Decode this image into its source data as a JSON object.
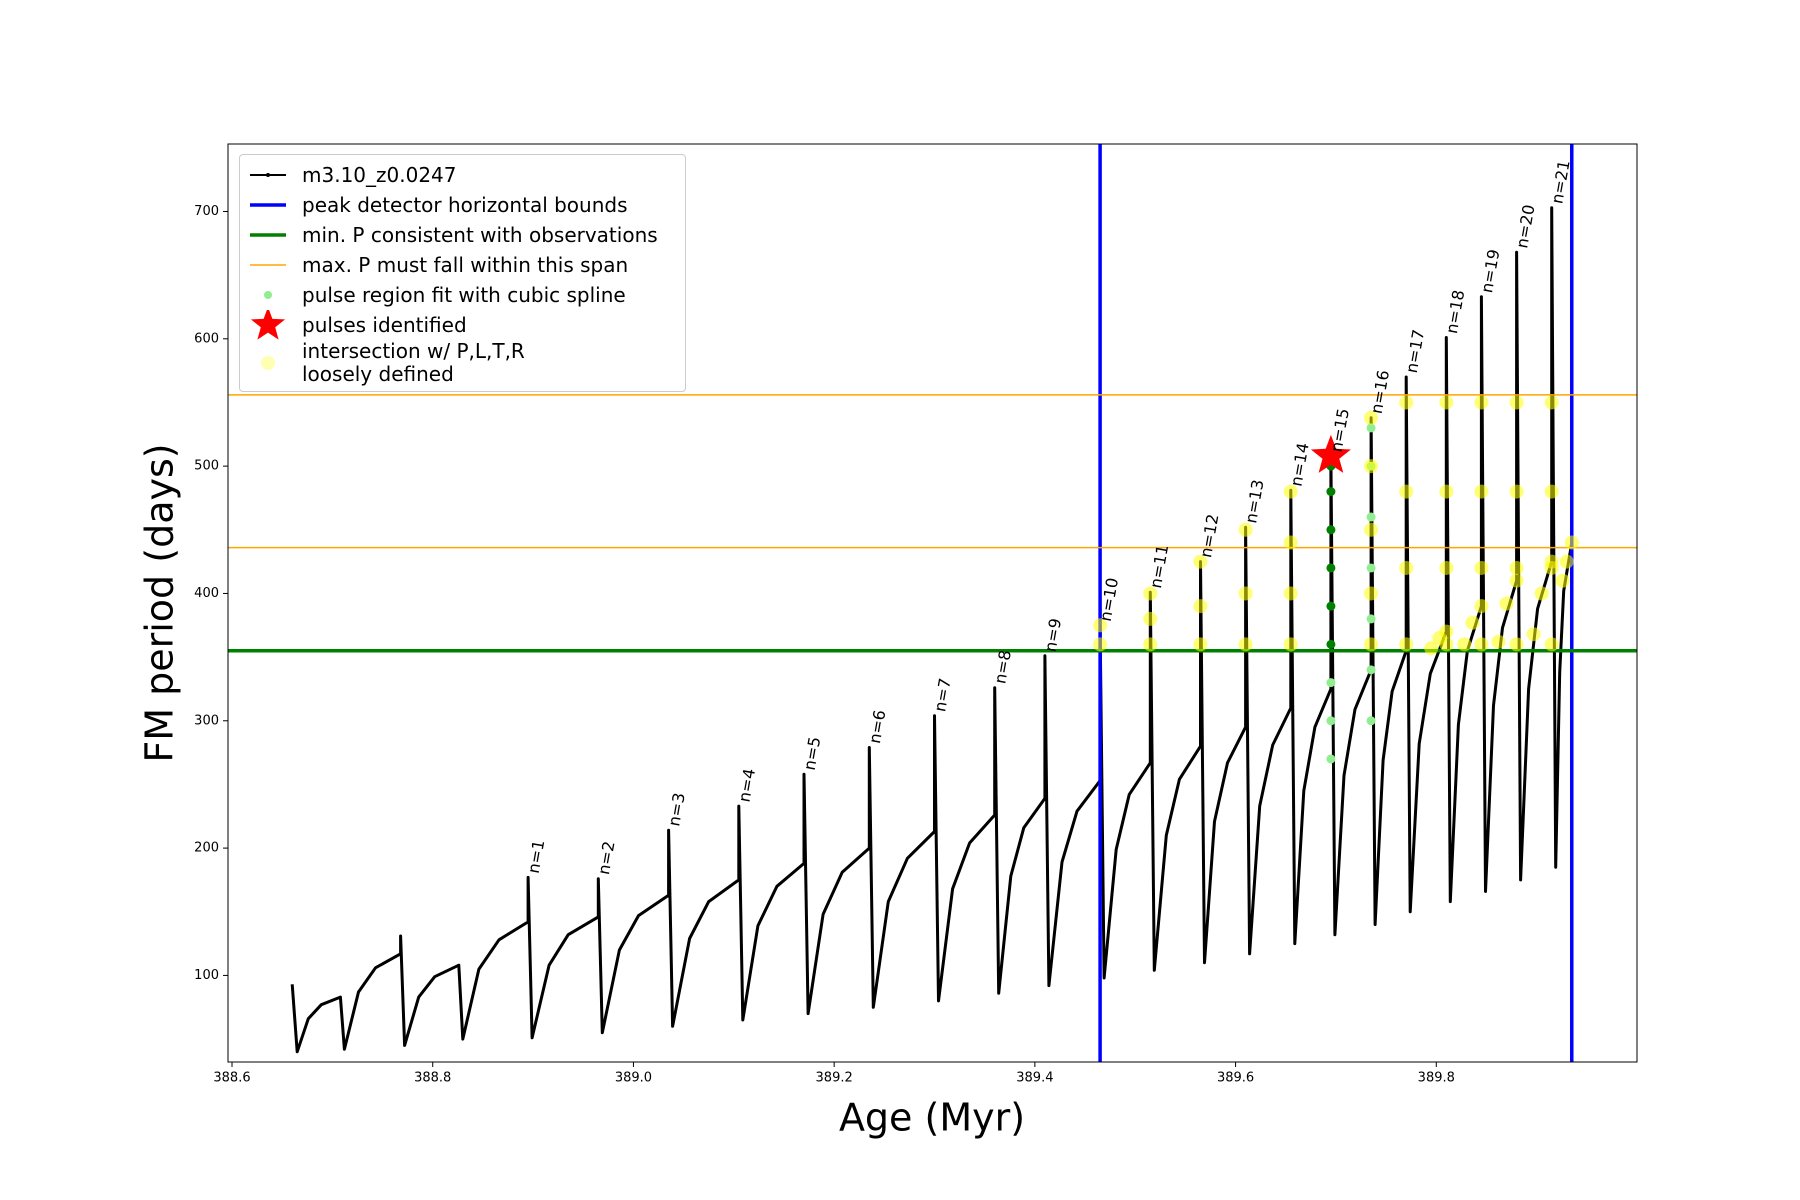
{
  "chart_data": {
    "type": "line",
    "xlabel": "Age (Myr)",
    "ylabel": "FM period (days)",
    "xlim": [
      388.596,
      390.0
    ],
    "xticks": [
      388.6,
      388.8,
      {
        "value": 389,
        "label": "389.0"
      },
      389.2,
      389.4,
      389.6,
      389.8
    ],
    "ylim": [
      32,
      753
    ],
    "yticks": [
      100,
      200,
      300,
      400,
      500,
      600,
      700
    ],
    "legend": "upper left",
    "series": [
      {
        "name": "m3.10_z0.0247",
        "type": "line",
        "color": "#000000",
        "width": 3,
        "x": [
          388.66,
          388.665,
          388.676,
          388.689,
          388.708,
          388.712,
          388.726,
          388.743,
          388.768,
          388.768,
          388.772,
          388.786,
          388.802,
          388.826,
          388.83,
          388.846,
          388.866,
          388.895,
          388.895,
          388.899,
          388.916,
          388.935,
          388.965,
          388.965,
          388.969,
          388.986,
          389.005,
          389.035,
          389.035,
          389.039,
          389.056,
          389.075,
          389.105,
          389.105,
          389.109,
          389.124,
          389.143,
          389.17,
          389.17,
          389.174,
          389.189,
          389.208,
          389.235,
          389.235,
          389.239,
          389.254,
          389.273,
          389.3,
          389.3,
          389.304,
          389.318,
          389.335,
          389.36,
          389.36,
          389.364,
          389.376,
          389.389,
          389.41,
          389.41,
          389.414,
          389.427,
          389.442,
          389.465,
          389.465,
          389.469,
          389.481,
          389.494,
          389.515,
          389.515,
          389.519,
          389.531,
          389.544,
          389.565,
          389.565,
          389.569,
          389.579,
          389.592,
          389.61,
          389.61,
          389.614,
          389.624,
          389.637,
          389.655,
          389.655,
          389.659,
          389.668,
          389.679,
          389.695,
          389.695,
          389.699,
          389.708,
          389.719,
          389.735,
          389.735,
          389.739,
          389.747,
          389.756,
          389.77,
          389.77,
          389.774,
          389.783,
          389.794,
          389.81,
          389.81,
          389.814,
          389.822,
          389.831,
          389.845,
          389.845,
          389.849,
          389.857,
          389.866,
          389.88,
          389.88,
          389.884,
          389.892,
          389.901,
          389.915,
          389.915,
          389.919,
          389.923,
          389.927,
          389.935
        ],
        "y": [
          93,
          40,
          66,
          77,
          83,
          42,
          87,
          106,
          117,
          131,
          45,
          83,
          99,
          108,
          50,
          105,
          128,
          142,
          177,
          51,
          108,
          132,
          146,
          176,
          55,
          120,
          147,
          163,
          214,
          60,
          129,
          158,
          175,
          233,
          65,
          139,
          170,
          188,
          258,
          70,
          148,
          181,
          200,
          279,
          75,
          158,
          192,
          213,
          304,
          80,
          168,
          204,
          226,
          326,
          86,
          178,
          216,
          239,
          351,
          92,
          189,
          229,
          253,
          375,
          98,
          199,
          242,
          267,
          401,
          104,
          210,
          254,
          280,
          425,
          110,
          221,
          267,
          295,
          452,
          117,
          233,
          281,
          310,
          481,
          125,
          245,
          295,
          325,
          508,
          132,
          257,
          309,
          340,
          538,
          140,
          269,
          323,
          355,
          570,
          150,
          282,
          337,
          370,
          601,
          158,
          297,
          355,
          390,
          633,
          166,
          312,
          373,
          410,
          668,
          175,
          325,
          388,
          425,
          703,
          185,
          338,
          402,
          440
        ]
      },
      {
        "name": "peak detector horizontal bounds",
        "type": "vline",
        "color": "#0000ff",
        "width": 3.5,
        "x": [
          389.465,
          389.935
        ]
      },
      {
        "name": "min. P consistent with observations",
        "type": "hline",
        "color": "#008000",
        "width": 3.5,
        "y": [
          355
        ]
      },
      {
        "name": "max. P must fall within this span",
        "type": "hline",
        "color": "#ffa500",
        "width": 1.5,
        "y": [
          436,
          556
        ]
      },
      {
        "name": "pulse region fit with cubic spline",
        "type": "scatter",
        "color": "#90ee90",
        "x": [
          389.695,
          389.695,
          389.695,
          389.735,
          389.735,
          389.735,
          389.735,
          389.735,
          389.735,
          389.735
        ],
        "y": [
          270,
          300,
          330,
          300,
          340,
          380,
          420,
          460,
          500,
          530
        ]
      },
      {
        "name": "pulses identified",
        "type": "star",
        "color": "#ff0000",
        "x": [
          389.695
        ],
        "y": [
          508
        ]
      },
      {
        "name": "intersection w/ P,L,T,R\nloosely defined",
        "type": "scatter-large",
        "color": "#ffff00",
        "x": [
          389.465,
          389.465,
          389.515,
          389.515,
          389.515,
          389.565,
          389.565,
          389.565,
          389.61,
          389.61,
          389.61,
          389.655,
          389.655,
          389.655,
          389.655,
          389.735,
          389.735,
          389.735,
          389.735,
          389.735,
          389.77,
          389.77,
          389.77,
          389.77,
          389.81,
          389.81,
          389.81,
          389.81,
          389.845,
          389.845,
          389.845,
          389.845,
          389.88,
          389.88,
          389.88,
          389.88,
          389.915,
          389.915,
          389.915,
          389.915,
          389.795,
          389.803,
          389.81,
          389.828,
          389.836,
          389.845,
          389.862,
          389.87,
          389.88,
          389.897,
          389.905,
          389.915,
          389.926,
          389.93,
          389.935
        ],
        "y": [
          360,
          375,
          360,
          380,
          400,
          360,
          390,
          425,
          360,
          400,
          450,
          360,
          400,
          440,
          480,
          360,
          400,
          450,
          500,
          538,
          360,
          420,
          480,
          550,
          360,
          420,
          480,
          550,
          360,
          420,
          480,
          550,
          360,
          420,
          480,
          550,
          360,
          420,
          480,
          550,
          357,
          365,
          370,
          360,
          377,
          390,
          362,
          392,
          410,
          368,
          400,
          425,
          410,
          425,
          440
        ]
      },
      {
        "type": "scatter",
        "color": "#008000",
        "x": [
          389.695,
          389.695,
          389.695,
          389.695,
          389.695,
          389.695
        ],
        "y": [
          360,
          390,
          420,
          450,
          480,
          500
        ]
      }
    ],
    "annotations": [
      {
        "text": "n=1",
        "x": 388.895,
        "y": 177
      },
      {
        "text": "n=2",
        "x": 388.965,
        "y": 176
      },
      {
        "text": "n=3",
        "x": 389.035,
        "y": 214
      },
      {
        "text": "n=4",
        "x": 389.105,
        "y": 233
      },
      {
        "text": "n=5",
        "x": 389.17,
        "y": 258
      },
      {
        "text": "n=6",
        "x": 389.235,
        "y": 279
      },
      {
        "text": "n=7",
        "x": 389.3,
        "y": 304
      },
      {
        "text": "n=8",
        "x": 389.36,
        "y": 326
      },
      {
        "text": "n=9",
        "x": 389.41,
        "y": 351
      },
      {
        "text": "n=10",
        "x": 389.465,
        "y": 375
      },
      {
        "text": "n=11",
        "x": 389.515,
        "y": 401
      },
      {
        "text": "n=12",
        "x": 389.565,
        "y": 425
      },
      {
        "text": "n=13",
        "x": 389.61,
        "y": 452
      },
      {
        "text": "n=14",
        "x": 389.655,
        "y": 481
      },
      {
        "text": "n=15",
        "x": 389.695,
        "y": 508
      },
      {
        "text": "n=16",
        "x": 389.735,
        "y": 538
      },
      {
        "text": "n=17",
        "x": 389.77,
        "y": 570
      },
      {
        "text": "n=18",
        "x": 389.81,
        "y": 601
      },
      {
        "text": "n=19",
        "x": 389.845,
        "y": 633
      },
      {
        "text": "n=20",
        "x": 389.88,
        "y": 668
      },
      {
        "text": "n=21",
        "x": 389.915,
        "y": 703
      }
    ]
  }
}
